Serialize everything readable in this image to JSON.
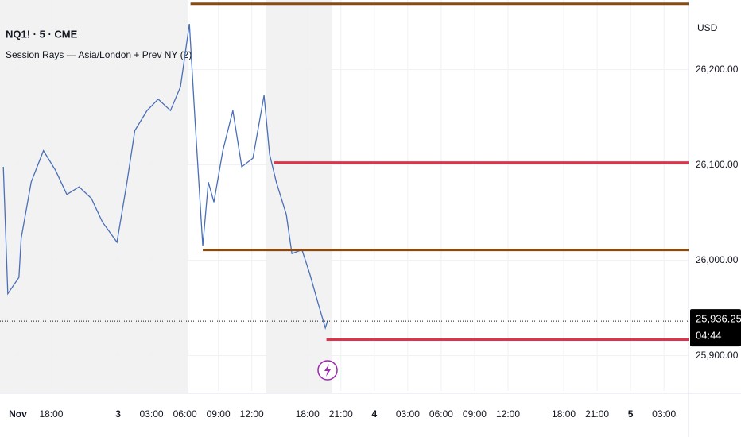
{
  "chart_data": {
    "type": "line",
    "title": "NQ1! · 5 · CME",
    "subtitle": "Session Rays — Asia/London + Prev NY (2)",
    "currency": "USD",
    "xlim": [
      -10.6,
      51.2
    ],
    "ylim": [
      25863,
      26273
    ],
    "xticks": [
      {
        "value": -9,
        "label": "Nov"
      },
      {
        "value": -6,
        "label": "18:00"
      },
      {
        "value": 0,
        "label": "3"
      },
      {
        "value": 3,
        "label": "03:00"
      },
      {
        "value": 6,
        "label": "06:00"
      },
      {
        "value": 9,
        "label": "09:00"
      },
      {
        "value": 12,
        "label": "12:00"
      },
      {
        "value": 17,
        "label": "18:00"
      },
      {
        "value": 20,
        "label": "21:00"
      },
      {
        "value": 23,
        "label": "4"
      },
      {
        "value": 26,
        "label": "03:00"
      },
      {
        "value": 29,
        "label": "06:00"
      },
      {
        "value": 32,
        "label": "09:00"
      },
      {
        "value": 35,
        "label": "12:00"
      },
      {
        "value": 40,
        "label": "18:00"
      },
      {
        "value": 43,
        "label": "21:00"
      },
      {
        "value": 46,
        "label": "5"
      },
      {
        "value": 49,
        "label": "03:00"
      }
    ],
    "yticks": [
      {
        "value": 26200,
        "label": "26,200.00"
      },
      {
        "value": 26100,
        "label": "26,100.00"
      },
      {
        "value": 26000,
        "label": "26,000.00"
      },
      {
        "value": 25900,
        "label": "25,900.00"
      }
    ],
    "grid": true,
    "sessions": [
      [
        -10.6,
        6.3
      ],
      [
        13.3,
        19.2
      ]
    ],
    "series": [
      {
        "name": "NQ1!",
        "color": "#4a6fb8",
        "x": [
          -10.3,
          -9.9,
          -8.9,
          -8.7,
          -7.8,
          -6.7,
          -5.6,
          -4.6,
          -3.5,
          -2.4,
          -1.4,
          -0.1,
          0.8,
          1.5,
          2.6,
          3.6,
          4.7,
          5.6,
          6.4,
          6.9,
          7.6,
          8.1,
          8.6,
          9.4,
          10.3,
          11.1,
          12.1,
          13.1,
          13.6,
          14.2,
          15.1,
          15.6,
          16.5,
          17.2,
          17.9,
          18.6,
          18.8
        ],
        "values": [
          26098,
          25965,
          25982,
          26023,
          26082,
          26115,
          26094,
          26069,
          26077,
          26065,
          26040,
          26019,
          26082,
          26136,
          26157,
          26169,
          26157,
          26182,
          26248,
          26148,
          26015,
          26082,
          26061,
          26115,
          26157,
          26098,
          26107,
          26173,
          26111,
          26082,
          26048,
          26007,
          26011,
          25986,
          25957,
          25929,
          25936.25
        ]
      }
    ],
    "rays": [
      {
        "color": "#8b4a10",
        "start": 6.5,
        "value": 26269
      },
      {
        "color": "#e0334a",
        "start": 14.0,
        "value": 26102.5
      },
      {
        "color": "#8b4a10",
        "start": 7.6,
        "value": 26010.8
      },
      {
        "color": "#e0334a",
        "start": 18.7,
        "value": 25916.7
      }
    ],
    "last_price": 25936.25,
    "last_price_label": "25,936.25",
    "countdown": "04:44"
  }
}
